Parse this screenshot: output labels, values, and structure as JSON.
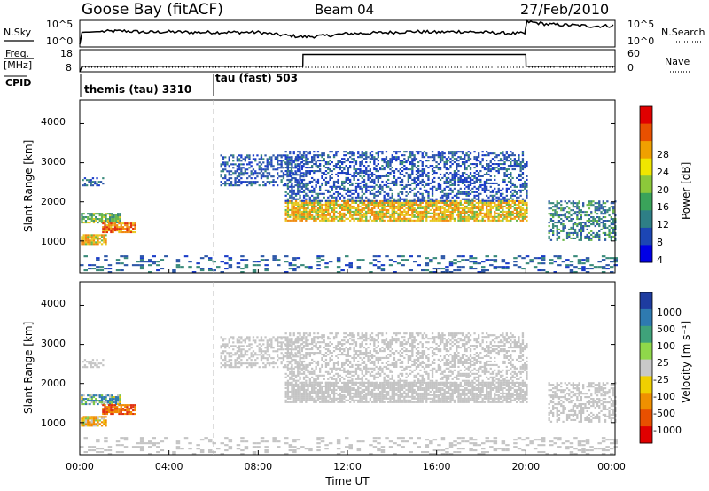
{
  "header": {
    "station": "Goose Bay (fitACF)",
    "beam": "Beam 04",
    "date": "27/Feb/2010"
  },
  "top_panel": {
    "nsky_label": "N.Sky",
    "nsky_ticks": [
      "10^5",
      "10^0"
    ],
    "nsearch_label": "N.Search",
    "nsearch_ticks": [
      "10^5",
      "10^0"
    ],
    "freq_label_1": "Freq.",
    "freq_label_2": "[MHz]",
    "freq_ticks": [
      "18",
      "8"
    ],
    "nave_label": "Nave",
    "nave_ticks": [
      "60",
      "0"
    ],
    "cpid_label": "CPID",
    "cpid_segments": [
      {
        "label": "themis (tau) 3310",
        "start_hour": 0
      },
      {
        "label": "tau (fast) 503",
        "start_hour": 6
      }
    ],
    "noise_sky_trace": {
      "hours": [
        0,
        0.1,
        1,
        2,
        3,
        4,
        5,
        6,
        7,
        8,
        9,
        10,
        11,
        12,
        13,
        14,
        15,
        16,
        17,
        18,
        19,
        19.95,
        20.05,
        21,
        22,
        23,
        24
      ],
      "level": [
        0.1,
        0.55,
        0.58,
        0.6,
        0.55,
        0.57,
        0.55,
        0.55,
        0.55,
        0.55,
        0.45,
        0.38,
        0.42,
        0.5,
        0.52,
        0.55,
        0.58,
        0.55,
        0.58,
        0.55,
        0.52,
        0.5,
        0.95,
        0.85,
        0.82,
        0.78,
        0.8
      ]
    },
    "nave_trace": {
      "hours": [
        0,
        0.1,
        10,
        10.01,
        20,
        20.01,
        24
      ],
      "level": [
        0,
        0.25,
        0.25,
        0.78,
        0.78,
        0.25,
        0.25
      ]
    }
  },
  "power_panel": {
    "ylabel": "Slant Range [km]",
    "yticks": [
      "1000",
      "2000",
      "3000",
      "4000"
    ],
    "colorbar_label": "Power [dB]",
    "colorbar_ticks": [
      "4",
      "8",
      "12",
      "16",
      "20",
      "24",
      "28"
    ],
    "colorbar_colors": [
      "#0000e6",
      "#1c46b4",
      "#2e7f86",
      "#3aa35a",
      "#8cc83a",
      "#f0e600",
      "#f0a000",
      "#e85000",
      "#e00000"
    ]
  },
  "velocity_panel": {
    "ylabel": "Slant Range [km]",
    "yticks": [
      "1000",
      "2000",
      "3000",
      "4000"
    ],
    "colorbar_label": "Velocity [m s⁻¹]",
    "colorbar_ticks": [
      "1000",
      "500",
      "100",
      "25",
      "-25",
      "-100",
      "-500",
      "-1000"
    ],
    "colorbar_colors": [
      "#1e3ca0",
      "#2e7ab0",
      "#3fa27a",
      "#8fd84a",
      "#c8c8c8",
      "#f0d000",
      "#f09000",
      "#e85000",
      "#e00000"
    ]
  },
  "xaxis": {
    "label": "Time UT",
    "ticks": [
      "00:00",
      "04:00",
      "08:00",
      "12:00",
      "16:00",
      "20:00",
      "00:00"
    ]
  },
  "chart_data": {
    "type": "heatmap",
    "title": "Goose Bay (fitACF)  Beam 04  27/Feb/2010",
    "xlabel": "Time UT",
    "ylabel": "Slant Range [km]",
    "xlim": [
      0,
      24
    ],
    "ylim": [
      180,
      4600
    ],
    "echo_regions": [
      {
        "t0": 0.05,
        "t1": 1.2,
        "r0": 900,
        "r1": 1150,
        "power": 20,
        "velocity": -100
      },
      {
        "t0": 0.05,
        "t1": 1.8,
        "r0": 1450,
        "r1": 1700,
        "power": 14,
        "velocity": 100
      },
      {
        "t0": 1.0,
        "t1": 2.5,
        "r0": 1200,
        "r1": 1450,
        "power": 24,
        "velocity": -500
      },
      {
        "t0": 0.1,
        "t1": 1.0,
        "r0": 2400,
        "r1": 2600,
        "power": 8,
        "velocity": 0
      },
      {
        "t0": 6.3,
        "t1": 10.0,
        "r0": 2400,
        "r1": 3200,
        "power": 6,
        "velocity": 0
      },
      {
        "t0": 9.2,
        "t1": 20.0,
        "r0": 1500,
        "r1": 2000,
        "power": 20,
        "velocity": 0
      },
      {
        "t0": 9.2,
        "t1": 20.0,
        "r0": 2000,
        "r1": 3300,
        "power": 6,
        "velocity": 0
      },
      {
        "t0": 21.0,
        "t1": 24.0,
        "r0": 1000,
        "r1": 2000,
        "power": 10,
        "velocity": 0
      },
      {
        "t0": 0.0,
        "t1": 24.0,
        "r0": 180,
        "r1": 600,
        "power": 8,
        "velocity": 0
      }
    ]
  }
}
